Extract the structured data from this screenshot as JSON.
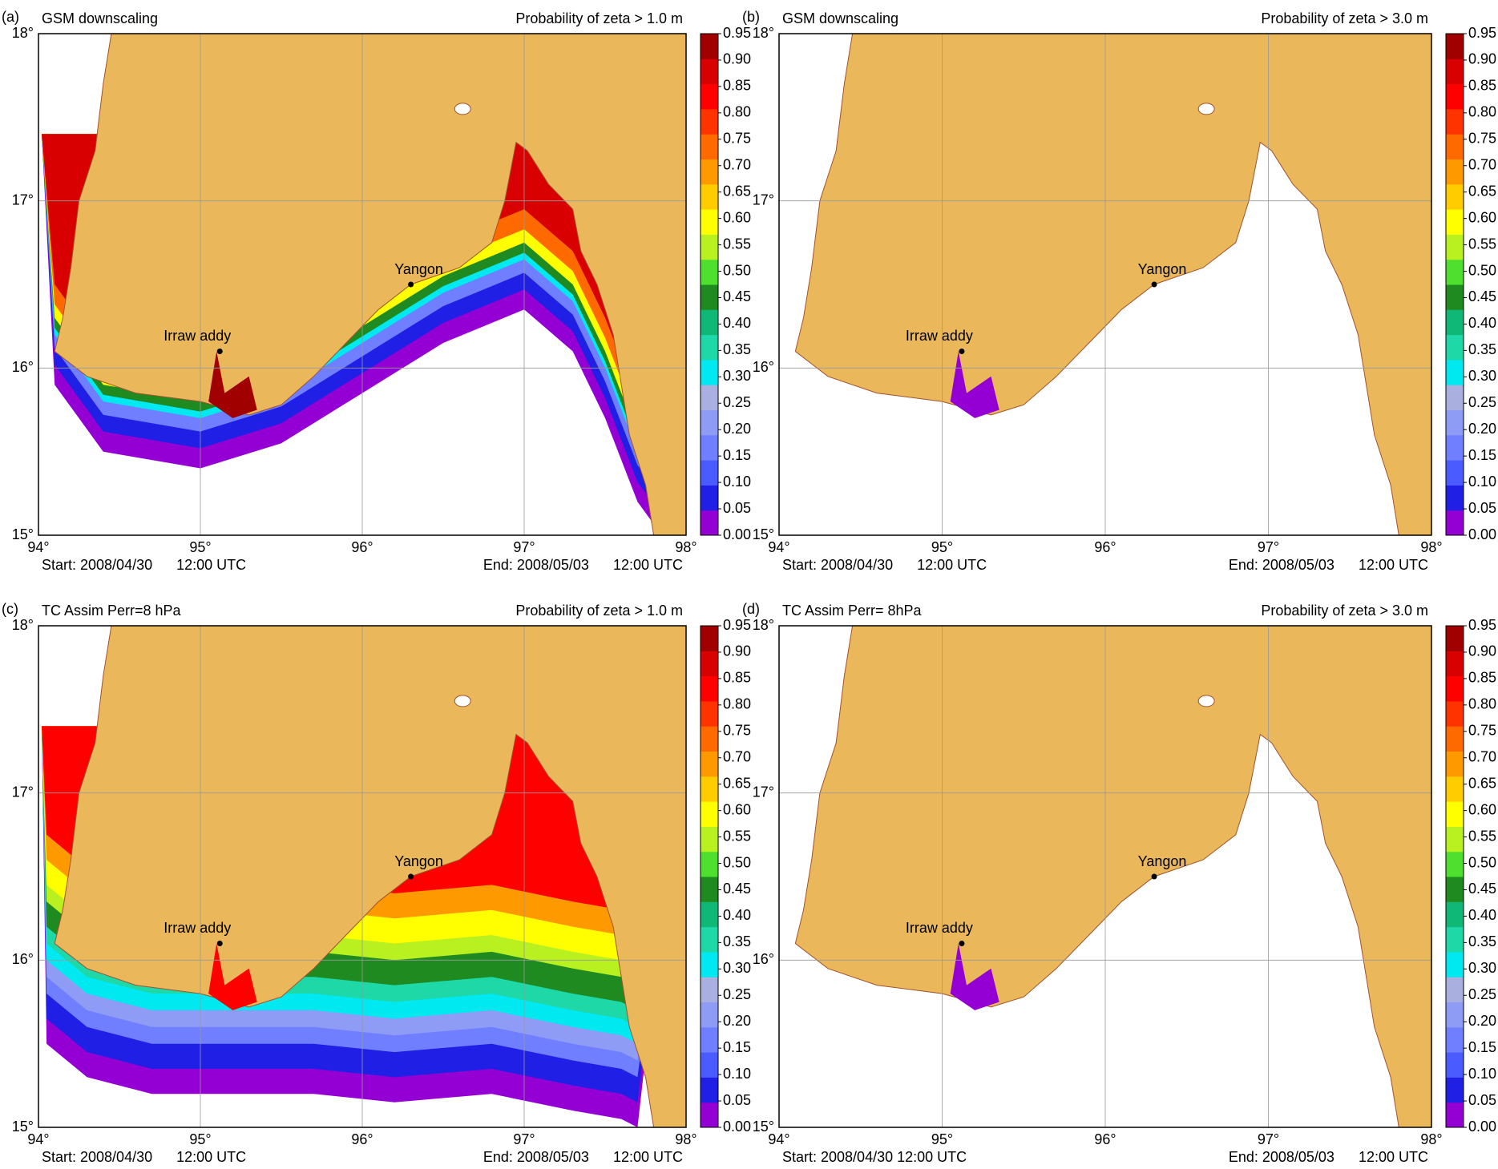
{
  "axes": {
    "xticks": [
      {
        "value": 94,
        "label": "94°"
      },
      {
        "value": 95,
        "label": "95°"
      },
      {
        "value": 96,
        "label": "96°"
      },
      {
        "value": 97,
        "label": "97°"
      },
      {
        "value": 98,
        "label": "98°"
      }
    ],
    "yticks": [
      {
        "value": 15,
        "label": "15°"
      },
      {
        "value": 16,
        "label": "16°"
      },
      {
        "value": 17,
        "label": "17°"
      },
      {
        "value": 18,
        "label": "18°"
      }
    ]
  },
  "colorbar": {
    "ticks": [
      {
        "value": 0,
        "label": "0.00"
      },
      {
        "value": 0.05,
        "label": "0.05"
      },
      {
        "value": 0.1,
        "label": "0.10"
      },
      {
        "value": 0.15,
        "label": "0.15"
      },
      {
        "value": 0.2,
        "label": "0.20"
      },
      {
        "value": 0.25,
        "label": "0.25"
      },
      {
        "value": 0.3,
        "label": "0.30"
      },
      {
        "value": 0.35,
        "label": "0.35"
      },
      {
        "value": 0.4,
        "label": "0.40"
      },
      {
        "value": 0.45,
        "label": "0.45"
      },
      {
        "value": 0.5,
        "label": "0.50"
      },
      {
        "value": 0.55,
        "label": "0.55"
      },
      {
        "value": 0.6,
        "label": "0.60"
      },
      {
        "value": 0.65,
        "label": "0.65"
      },
      {
        "value": 0.7,
        "label": "0.70"
      },
      {
        "value": 0.75,
        "label": "0.75"
      },
      {
        "value": 0.8,
        "label": "0.80"
      },
      {
        "value": 0.85,
        "label": "0.85"
      },
      {
        "value": 0.9,
        "label": "0.90"
      },
      {
        "value": 0.95,
        "label": "0.95"
      }
    ],
    "colors": [
      "#9400d3",
      "#1f1fe6",
      "#4a5cff",
      "#6f7fff",
      "#8f9cf5",
      "#a9b0e0",
      "#00e8f0",
      "#1ed8a8",
      "#10b878",
      "#1f8a1f",
      "#4fe02f",
      "#b8f020",
      "#ffff00",
      "#ffcc00",
      "#ff9900",
      "#ff6a00",
      "#ff3300",
      "#ff0000",
      "#d80000",
      "#a00000"
    ]
  },
  "panels": [
    {
      "label": "(a)",
      "title": "GSM downscaling",
      "subtitle": "Probability of zeta > 1.0 m",
      "start": "Start: 2008/04/30      12:00 UTC",
      "end": "End: 2008/05/03      12:00 UTC",
      "places": [
        "Yangon",
        "Irraw addy"
      ]
    },
    {
      "label": "(b)",
      "title": "GSM downscaling",
      "subtitle": "Probability of zeta > 3.0 m",
      "start": "Start: 2008/04/30      12:00 UTC",
      "end": "End: 2008/05/03      12:00 UTC",
      "places": [
        "Yangon",
        "Irraw addy"
      ]
    },
    {
      "label": "(c)",
      "title": "TC Assim Perr=8 hPa",
      "subtitle": "Probability of zeta > 1.0 m",
      "start": "Start: 2008/04/30      12:00 UTC",
      "end": "End: 2008/05/03      12:00 UTC",
      "places": [
        "Yangon",
        "Irraw addy"
      ]
    },
    {
      "label": "(d)",
      "title": "TC Assim Perr= 8hPa",
      "subtitle": "Probability of zeta > 3.0 m",
      "start": "Start: 2008/04/30 12:00 UTC",
      "end": "End: 2008/05/03      12:00 UTC",
      "places": [
        "Yangon",
        "Irraw addy"
      ]
    }
  ]
}
